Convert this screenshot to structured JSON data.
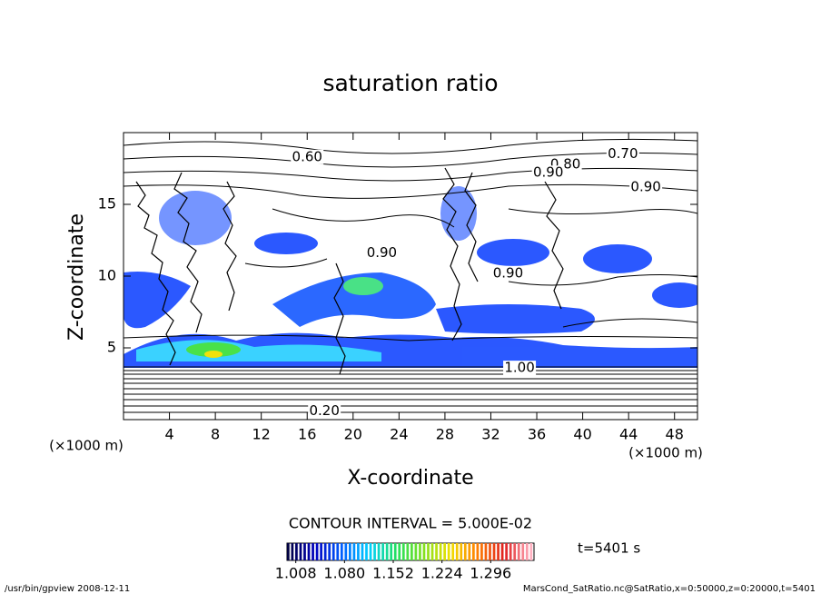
{
  "chart_data": {
    "type": "contour",
    "title": "saturation ratio",
    "xlabel": "X-coordinate",
    "ylabel": "Z-coordinate",
    "xunit": "(×1000 m)",
    "yunit": "(×1000 m)",
    "xlim": [
      0,
      50
    ],
    "ylim": [
      0,
      20
    ],
    "xticks": [
      4,
      8,
      12,
      16,
      20,
      24,
      28,
      32,
      36,
      40,
      44,
      48
    ],
    "yticks": [
      5,
      10,
      15
    ],
    "contour_labels": [
      {
        "text": "0.60",
        "x": 16,
        "z": 18.3
      },
      {
        "text": "0.70",
        "x": 43.5,
        "z": 18.5
      },
      {
        "text": "0.80",
        "x": 38.5,
        "z": 17.8
      },
      {
        "text": "0.90",
        "x": 37,
        "z": 17.2
      },
      {
        "text": "0.90",
        "x": 45.5,
        "z": 16.2
      },
      {
        "text": "0.90",
        "x": 22.5,
        "z": 11.6
      },
      {
        "text": "0.90",
        "x": 33.5,
        "z": 10.2
      },
      {
        "text": "1.00",
        "x": 34.5,
        "z": 3.6
      },
      {
        "text": "0.20",
        "x": 17.5,
        "z": 0.6
      }
    ],
    "contour_interval": "CONTOUR INTERVAL = 5.000E-02",
    "colorbar": {
      "clim": [
        0.995,
        1.36
      ],
      "colors": [
        "#000040",
        "#0000c0",
        "#0060ff",
        "#00d0ff",
        "#20e060",
        "#80e020",
        "#f0e000",
        "#ff8000",
        "#e02020",
        "#ffb0c0"
      ],
      "ticks": [
        1.008,
        {
          "value": 1.08,
          "label": "1.080"
        },
        1.152,
        1.224,
        1.296
      ]
    },
    "time_label": "t=5401 s",
    "footer_left": "/usr/bin/gpview   2008-12-11",
    "footer_right": "MarsCond_SatRatio.nc@SatRatio,x=0:50000,z=0:20000,t=5401"
  }
}
